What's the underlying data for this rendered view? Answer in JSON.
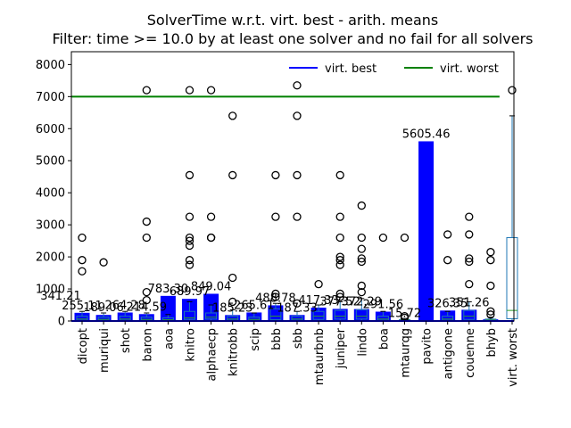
{
  "chart_data": {
    "type": "bar",
    "title": "SolverTime w.r.t. virt. best - arith. means",
    "subtitle": "Filter: time >= 10.0 by at least one solver and no fail for all solvers",
    "xlabel": "",
    "ylabel": "",
    "ylim": [
      0,
      8400
    ],
    "yticks": [
      0,
      1000,
      2000,
      3000,
      4000,
      5000,
      6000,
      7000,
      8000
    ],
    "ytick_labels": [
      "0",
      "1000",
      "2000",
      "3000",
      "4000",
      "5000",
      "6000",
      "7000",
      "8000"
    ],
    "grid": false,
    "legend_position": "top-right",
    "categories": [
      "dicopt",
      "muriqui",
      "shot",
      "baron",
      "aoa",
      "knitro",
      "alphaecp",
      "knitrobb",
      "scip",
      "bbb",
      "sbb",
      "mtaurbnb",
      "juniper",
      "lindo",
      "boa",
      "mtaurqg",
      "pavito",
      "antigone",
      "couenne",
      "bhyb",
      "virt. worst"
    ],
    "series": [
      {
        "name": "",
        "values": [
          255.11,
          189.06,
          264.28,
          214.59,
          783.3,
          689.97,
          849.04,
          185.23,
          265.61,
          488.78,
          187.33,
          417.33,
          377.52,
          372.29,
          291.56,
          15.72,
          5605.46,
          326.35,
          351.26,
          52.0,
          null
        ],
        "labels": [
          "255.11",
          "189.06",
          "264.28",
          "214.59",
          "783.30",
          "689.97",
          "849.04",
          "185.23",
          "265.61",
          "488.78",
          "187.33",
          "417.33",
          "377.52",
          "372.29",
          "291.56",
          "15.72",
          "5605.46",
          "326.35",
          "351.26",
          "",
          ""
        ],
        "color": "#0000ff"
      }
    ],
    "extra_labels": [
      "341.21"
    ],
    "reference_lines": [
      {
        "name": "virt. best",
        "value": 0,
        "color": "#0000ff"
      },
      {
        "name": "virt. worst",
        "value": 7000,
        "color": "#008000"
      }
    ],
    "boxplots": [
      {
        "category": "dicopt",
        "q1": 20,
        "median": 60,
        "q3": 150,
        "whisker_low": 10,
        "whisker_high": 300,
        "outliers": [
          1550,
          1900,
          2600
        ]
      },
      {
        "category": "muriqui",
        "q1": 20,
        "median": 50,
        "q3": 120,
        "whisker_low": 10,
        "whisker_high": 250,
        "outliers": [
          1830
        ]
      },
      {
        "category": "shot",
        "q1": 20,
        "median": 60,
        "q3": 150,
        "whisker_low": 10,
        "whisker_high": 300,
        "outliers": []
      },
      {
        "category": "baron",
        "q1": 20,
        "median": 50,
        "q3": 120,
        "whisker_low": 10,
        "whisker_high": 250,
        "outliers": [
          650,
          900,
          2600,
          3100,
          7200
        ]
      },
      {
        "category": "aoa",
        "q1": 15,
        "median": 40,
        "q3": 100,
        "whisker_low": 10,
        "whisker_high": 200,
        "outliers": []
      },
      {
        "category": "knitro",
        "q1": 50,
        "median": 100,
        "q3": 300,
        "whisker_low": 10,
        "whisker_high": 600,
        "outliers": [
          1750,
          1900,
          2350,
          2500,
          2600,
          3250,
          4550,
          7200
        ]
      },
      {
        "category": "alphaecp",
        "q1": 60,
        "median": 120,
        "q3": 250,
        "whisker_low": 10,
        "whisker_high": 500,
        "outliers": [
          2600,
          2600,
          3250,
          7200
        ]
      },
      {
        "category": "knitrobb",
        "q1": 20,
        "median": 60,
        "q3": 150,
        "whisker_low": 10,
        "whisker_high": 350,
        "outliers": [
          600,
          1350,
          4550,
          6400
        ]
      },
      {
        "category": "scip",
        "q1": 20,
        "median": 50,
        "q3": 120,
        "whisker_low": 10,
        "whisker_high": 250,
        "outliers": []
      },
      {
        "category": "bbb",
        "q1": 40,
        "median": 150,
        "q3": 380,
        "whisker_low": 10,
        "whisker_high": 550,
        "outliers": [
          750,
          850,
          3250,
          4550
        ]
      },
      {
        "category": "sbb",
        "q1": 20,
        "median": 60,
        "q3": 150,
        "whisker_low": 10,
        "whisker_high": 300,
        "outliers": [
          550,
          3250,
          4550,
          6400,
          7350
        ]
      },
      {
        "category": "mtaurbnb",
        "q1": 50,
        "median": 150,
        "q3": 300,
        "whisker_low": 10,
        "whisker_high": 500,
        "outliers": [
          1150
        ]
      },
      {
        "category": "juniper",
        "q1": 60,
        "median": 150,
        "q3": 330,
        "whisker_low": 10,
        "whisker_high": 600,
        "outliers": [
          750,
          850,
          1750,
          1900,
          2000,
          2600,
          3250,
          4550
        ]
      },
      {
        "category": "lindo",
        "q1": 60,
        "median": 150,
        "q3": 350,
        "whisker_low": 10,
        "whisker_high": 700,
        "outliers": [
          900,
          1100,
          1850,
          1950,
          2250,
          2600,
          3600
        ]
      },
      {
        "category": "boa",
        "q1": 20,
        "median": 60,
        "q3": 150,
        "whisker_low": 10,
        "whisker_high": 300,
        "outliers": [
          2600
        ]
      },
      {
        "category": "mtaurqg",
        "q1": 10,
        "median": 20,
        "q3": 40,
        "whisker_low": 10,
        "whisker_high": 80,
        "outliers": [
          100,
          150,
          2600
        ]
      },
      {
        "category": "pavito",
        "q1": 0,
        "median": 0,
        "q3": 0,
        "whisker_low": 0,
        "whisker_high": 0,
        "outliers": []
      },
      {
        "category": "antigone",
        "q1": 20,
        "median": 60,
        "q3": 150,
        "whisker_low": 10,
        "whisker_high": 300,
        "outliers": [
          1900,
          2700
        ]
      },
      {
        "category": "couenne",
        "q1": 50,
        "median": 150,
        "q3": 330,
        "whisker_low": 10,
        "whisker_high": 600,
        "outliers": [
          1150,
          1850,
          1950,
          2700,
          3250
        ]
      },
      {
        "category": "bhyb",
        "q1": 10,
        "median": 30,
        "q3": 60,
        "whisker_low": 10,
        "whisker_high": 120,
        "outliers": [
          200,
          300,
          1100,
          1900,
          2150
        ]
      },
      {
        "category": "virt. worst",
        "q1": 70,
        "median": 330,
        "q3": 2600,
        "whisker_low": 10,
        "whisker_high": 6400,
        "outliers": [
          7200
        ]
      }
    ],
    "colors": {
      "bar": "#0000ff",
      "box_edge": "#1f77b4",
      "median": "#2ca02c",
      "virt_best": "#0000ff",
      "virt_worst": "#008000"
    }
  }
}
